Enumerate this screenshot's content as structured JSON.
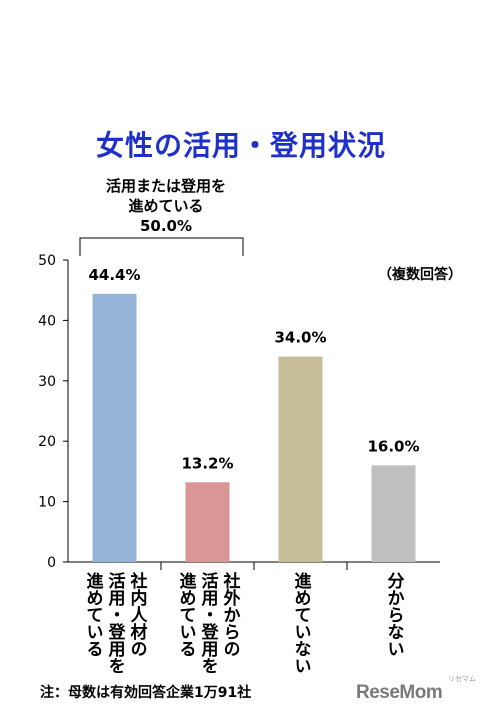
{
  "title": "女性の活用・登用状況",
  "group_label": {
    "line1": "活用または登用を",
    "line2": "進めている",
    "line3": "50.0%"
  },
  "note": "（複数回答）",
  "footnote": "注：母数は有効回答企業1万91社",
  "logo": "ReseMom",
  "logo_sub": "リセマム",
  "chart_data": {
    "type": "bar",
    "categories": [
      [
        "社内人材の",
        "活用・登用を",
        "進めている"
      ],
      [
        "社外からの",
        "活用・登用を",
        "進めている"
      ],
      [
        "進めていない"
      ],
      [
        "分からない"
      ]
    ],
    "values": [
      44.4,
      13.2,
      34.0,
      16.0
    ],
    "data_labels": [
      "44.4%",
      "13.2%",
      "34.0%",
      "16.0%"
    ],
    "colors": [
      "#95b3d7",
      "#d99694",
      "#c4bd97",
      "#bfbfbf"
    ],
    "ylim": [
      0,
      50
    ],
    "yticks": [
      0,
      10,
      20,
      30,
      40,
      50
    ],
    "xlabel": "",
    "ylabel": ""
  }
}
